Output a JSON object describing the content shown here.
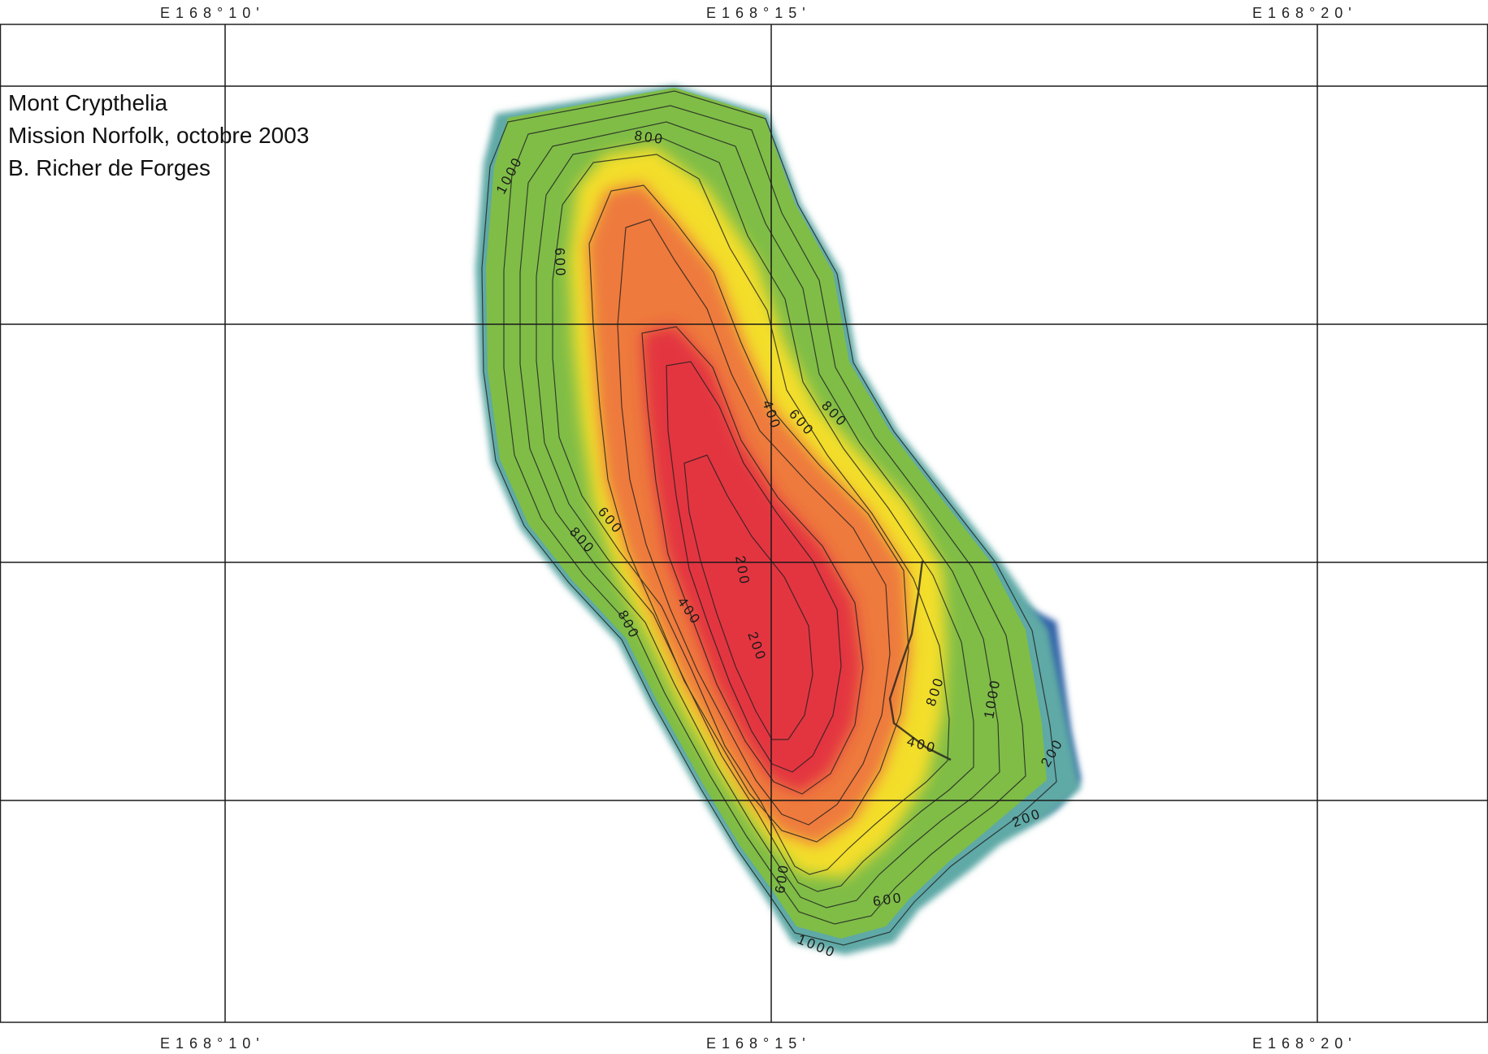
{
  "map": {
    "info_lines": [
      "Mont Crypthelia",
      "Mission Norfolk, octobre 2003",
      "B. Richer de Forges"
    ],
    "longitude_labels": [
      "E168°10'",
      "E168°15'",
      "E168°20'"
    ],
    "contour_labels": [
      "800",
      "1000",
      "600",
      "400",
      "600",
      "800",
      "600",
      "800",
      "200",
      "400",
      "800",
      "200",
      "800",
      "1000",
      "400",
      "200",
      "200",
      "600",
      "600",
      "1000"
    ],
    "depth_colors": {
      "shallow": "#e3363f",
      "mid_orange": "#ee7a3c",
      "yellow": "#f3de2a",
      "green": "#7fbd47",
      "deep_teal": "#5fa9a6",
      "deepest_blue": "#2f5ea8"
    }
  }
}
